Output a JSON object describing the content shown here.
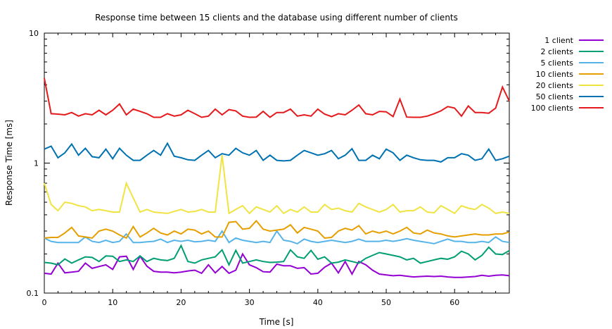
{
  "chart_data": {
    "type": "line",
    "title": "Response time between 15 clients and the database using different number of clients",
    "xlabel": "Time [s]",
    "ylabel": "Response Time [ms]",
    "xlim": [
      0,
      68
    ],
    "ylim": [
      0.1,
      10
    ],
    "y_scale": "log",
    "grid": false,
    "legend_position": "top-right-outside",
    "x_ticks": [
      0,
      10,
      20,
      30,
      40,
      50,
      60
    ],
    "x_tick_labels": [
      "0",
      "10",
      "20",
      "30",
      "40",
      "50",
      "60"
    ],
    "y_ticks": [
      0.1,
      1,
      10
    ],
    "y_tick_labels": [
      "0.1",
      "1",
      "10"
    ],
    "x": [
      0,
      1,
      2,
      3,
      4,
      5,
      6,
      7,
      8,
      9,
      10,
      11,
      12,
      13,
      14,
      15,
      16,
      17,
      18,
      19,
      20,
      21,
      22,
      23,
      24,
      25,
      26,
      27,
      28,
      29,
      30,
      31,
      32,
      33,
      34,
      35,
      36,
      37,
      38,
      39,
      40,
      41,
      42,
      43,
      44,
      45,
      46,
      47,
      48,
      49,
      50,
      51,
      52,
      53,
      54,
      55,
      56,
      57,
      58,
      59,
      60,
      61,
      62,
      63,
      64,
      65,
      66,
      67,
      68
    ],
    "series": [
      {
        "name": "1 client",
        "color": "#9400d3",
        "values": [
          0.142,
          0.14,
          0.17,
          0.143,
          0.145,
          0.147,
          0.17,
          0.155,
          0.16,
          0.165,
          0.152,
          0.19,
          0.192,
          0.152,
          0.192,
          0.161,
          0.147,
          0.145,
          0.145,
          0.143,
          0.145,
          0.148,
          0.15,
          0.142,
          0.165,
          0.143,
          0.16,
          0.142,
          0.15,
          0.2,
          0.165,
          0.157,
          0.146,
          0.145,
          0.167,
          0.162,
          0.162,
          0.155,
          0.157,
          0.14,
          0.142,
          0.158,
          0.17,
          0.143,
          0.175,
          0.14,
          0.175,
          0.165,
          0.15,
          0.14,
          0.138,
          0.136,
          0.137,
          0.135,
          0.133,
          0.134,
          0.135,
          0.134,
          0.135,
          0.133,
          0.132,
          0.132,
          0.133,
          0.134,
          0.137,
          0.135,
          0.137,
          0.138,
          0.136
        ]
      },
      {
        "name": "2 clients",
        "color": "#009e73",
        "values": [
          0.172,
          0.17,
          0.165,
          0.183,
          0.17,
          0.18,
          0.19,
          0.188,
          0.175,
          0.193,
          0.192,
          0.175,
          0.18,
          0.175,
          0.193,
          0.175,
          0.185,
          0.18,
          0.178,
          0.185,
          0.232,
          0.175,
          0.17,
          0.18,
          0.185,
          0.19,
          0.215,
          0.165,
          0.213,
          0.17,
          0.175,
          0.18,
          0.175,
          0.172,
          0.173,
          0.175,
          0.215,
          0.19,
          0.185,
          0.213,
          0.182,
          0.19,
          0.17,
          0.173,
          0.18,
          0.175,
          0.17,
          0.185,
          0.195,
          0.205,
          0.2,
          0.195,
          0.19,
          0.18,
          0.185,
          0.17,
          0.175,
          0.18,
          0.185,
          0.182,
          0.19,
          0.21,
          0.2,
          0.18,
          0.195,
          0.225,
          0.2,
          0.198,
          0.212
        ]
      },
      {
        "name": "5 clients",
        "color": "#56b4e9",
        "values": [
          0.265,
          0.25,
          0.245,
          0.245,
          0.245,
          0.245,
          0.27,
          0.25,
          0.245,
          0.255,
          0.245,
          0.25,
          0.285,
          0.245,
          0.245,
          0.248,
          0.25,
          0.26,
          0.245,
          0.255,
          0.25,
          0.255,
          0.248,
          0.25,
          0.255,
          0.25,
          0.3,
          0.245,
          0.265,
          0.255,
          0.25,
          0.245,
          0.25,
          0.245,
          0.3,
          0.255,
          0.25,
          0.24,
          0.26,
          0.25,
          0.245,
          0.25,
          0.255,
          0.25,
          0.245,
          0.25,
          0.26,
          0.25,
          0.25,
          0.25,
          0.255,
          0.25,
          0.255,
          0.262,
          0.255,
          0.25,
          0.245,
          0.24,
          0.25,
          0.26,
          0.25,
          0.25,
          0.245,
          0.245,
          0.25,
          0.245,
          0.27,
          0.25,
          0.245
        ]
      },
      {
        "name": "10 clients",
        "color": "#e69f00",
        "values": [
          0.265,
          0.268,
          0.268,
          0.29,
          0.32,
          0.275,
          0.27,
          0.265,
          0.3,
          0.31,
          0.3,
          0.28,
          0.265,
          0.325,
          0.27,
          0.29,
          0.315,
          0.29,
          0.28,
          0.3,
          0.285,
          0.31,
          0.305,
          0.285,
          0.3,
          0.27,
          0.27,
          0.35,
          0.355,
          0.31,
          0.315,
          0.36,
          0.31,
          0.3,
          0.305,
          0.31,
          0.335,
          0.29,
          0.32,
          0.31,
          0.3,
          0.265,
          0.268,
          0.3,
          0.315,
          0.305,
          0.33,
          0.285,
          0.3,
          0.29,
          0.3,
          0.285,
          0.3,
          0.32,
          0.29,
          0.285,
          0.305,
          0.29,
          0.285,
          0.275,
          0.27,
          0.275,
          0.28,
          0.285,
          0.28,
          0.28,
          0.285,
          0.285,
          0.295
        ]
      },
      {
        "name": "20 clients",
        "color": "#f0e442",
        "values": [
          0.7,
          0.48,
          0.43,
          0.5,
          0.49,
          0.47,
          0.46,
          0.43,
          0.44,
          0.43,
          0.42,
          0.42,
          0.7,
          0.54,
          0.42,
          0.44,
          0.42,
          0.415,
          0.41,
          0.425,
          0.44,
          0.42,
          0.425,
          0.44,
          0.42,
          0.42,
          1.15,
          0.41,
          0.44,
          0.47,
          0.41,
          0.46,
          0.44,
          0.42,
          0.47,
          0.41,
          0.44,
          0.42,
          0.46,
          0.42,
          0.42,
          0.48,
          0.44,
          0.45,
          0.43,
          0.42,
          0.49,
          0.46,
          0.44,
          0.42,
          0.44,
          0.48,
          0.42,
          0.43,
          0.43,
          0.46,
          0.42,
          0.415,
          0.47,
          0.44,
          0.41,
          0.47,
          0.45,
          0.44,
          0.48,
          0.45,
          0.41,
          0.42,
          0.41
        ]
      },
      {
        "name": "50 clients",
        "color": "#0072b2",
        "values": [
          1.28,
          1.35,
          1.1,
          1.2,
          1.4,
          1.15,
          1.3,
          1.12,
          1.1,
          1.28,
          1.08,
          1.3,
          1.15,
          1.05,
          1.05,
          1.15,
          1.25,
          1.15,
          1.42,
          1.13,
          1.1,
          1.06,
          1.05,
          1.15,
          1.25,
          1.1,
          1.18,
          1.15,
          1.3,
          1.2,
          1.15,
          1.25,
          1.05,
          1.15,
          1.05,
          1.04,
          1.05,
          1.15,
          1.25,
          1.2,
          1.15,
          1.18,
          1.25,
          1.08,
          1.15,
          1.29,
          1.05,
          1.05,
          1.15,
          1.08,
          1.28,
          1.2,
          1.05,
          1.15,
          1.1,
          1.06,
          1.05,
          1.05,
          1.02,
          1.1,
          1.1,
          1.18,
          1.15,
          1.05,
          1.08,
          1.28,
          1.05,
          1.08,
          1.13
        ]
      },
      {
        "name": "100 clients",
        "color": "#e41a1c",
        "values": [
          4.5,
          2.4,
          2.38,
          2.35,
          2.45,
          2.3,
          2.4,
          2.35,
          2.55,
          2.35,
          2.55,
          2.85,
          2.35,
          2.6,
          2.5,
          2.4,
          2.25,
          2.25,
          2.4,
          2.3,
          2.35,
          2.55,
          2.4,
          2.25,
          2.3,
          2.6,
          2.35,
          2.58,
          2.52,
          2.3,
          2.25,
          2.26,
          2.5,
          2.25,
          2.45,
          2.45,
          2.6,
          2.3,
          2.35,
          2.3,
          2.6,
          2.38,
          2.28,
          2.4,
          2.35,
          2.55,
          2.8,
          2.4,
          2.35,
          2.5,
          2.48,
          2.28,
          3.1,
          2.26,
          2.25,
          2.25,
          2.3,
          2.4,
          2.52,
          2.72,
          2.65,
          2.3,
          2.75,
          2.45,
          2.45,
          2.42,
          2.65,
          3.85,
          3.0
        ]
      }
    ]
  }
}
